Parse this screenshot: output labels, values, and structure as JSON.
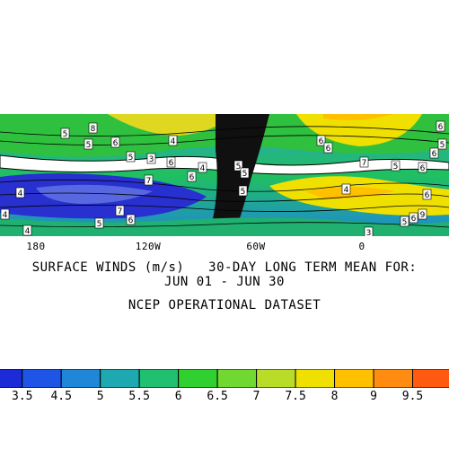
{
  "map": {
    "title_line1": "SURFACE WINDS (m/s)   30-DAY LONG TERM MEAN FOR:",
    "title_line2": "JUN 01 - JUN 30",
    "dataset": "NCEP OPERATIONAL DATASET",
    "lon_labels": [
      "180",
      "120W",
      "60W",
      "0"
    ],
    "contour_labels": [
      "5",
      "8",
      "5",
      "6",
      "4",
      "5",
      "6",
      "3",
      "4",
      "5",
      "5",
      "6",
      "6",
      "7",
      "5",
      "6",
      "6",
      "5",
      "6",
      "4",
      "7",
      "6",
      "4",
      "4",
      "4",
      "5",
      "6",
      "7",
      "5",
      "3",
      "5",
      "6",
      "9",
      "6"
    ],
    "colorbar": {
      "labels": [
        "3.5",
        "4.5",
        "5",
        "5.5",
        "6",
        "6.5",
        "7",
        "7.5",
        "8",
        "9",
        "9.5"
      ],
      "colors": [
        "#1c2ad8",
        "#1f55e6",
        "#1f86d8",
        "#1ea8b0",
        "#20c070",
        "#30d030",
        "#70d830",
        "#b8dc28",
        "#f0e000",
        "#ffc000",
        "#ff8c10",
        "#ff5a10"
      ]
    }
  }
}
